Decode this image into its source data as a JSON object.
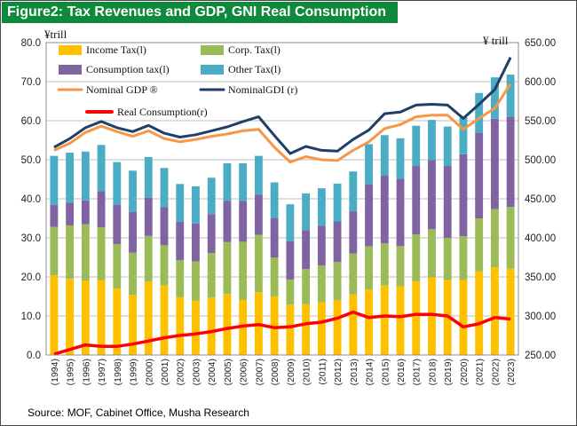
{
  "title": "Figure2: Tax Revenues and GDP, GNI Real Consumption",
  "source": "Source: MOF, Cabinet Office, Musha Research",
  "colors": {
    "title_bg": "#0f8a3c",
    "income_tax": "#ffc000",
    "corp_tax": "#9bbb59",
    "consumption_tax": "#8064a2",
    "other_tax": "#4bacc6",
    "nominal_gdp": "#f79646",
    "nominal_gdi": "#1f3f66",
    "real_consumption": "#ff0000"
  },
  "chart_data": {
    "type": "bar",
    "stacked": true,
    "categories": [
      "1994",
      "1995",
      "1996",
      "1997",
      "1998",
      "1999",
      "2000",
      "2001",
      "2002",
      "2003",
      "2004",
      "2005",
      "2006",
      "2007",
      "2008",
      "2009",
      "2010",
      "2011",
      "2012",
      "2013",
      "2014",
      "2015",
      "2016",
      "2017",
      "2018",
      "2019",
      "2020",
      "2021",
      "2022",
      "2023"
    ],
    "xtick_labels": [
      "(1994)",
      "(1995)",
      "(1996)",
      "(1997)",
      "(1998)",
      "(1999)",
      "(2000)",
      "(2001)",
      "(2002)",
      "(2003)",
      "(2004)",
      "(2005)",
      "(2006)",
      "(2007)",
      "(2008)",
      "(2009)",
      "(2010)",
      "(2011)",
      "(2012)",
      "(2013)",
      "(2014)",
      "(2015)",
      "(2016)",
      "(2017)",
      "(2018)",
      "(2019)",
      "(2020)",
      "(2021)",
      "(2022)",
      "(2023)"
    ],
    "ylabel_left": "¥trill",
    "ylabel_right": "¥ trill",
    "ylim_left": [
      0,
      80
    ],
    "ylim_right": [
      250,
      650
    ],
    "yticks_left": [
      "0.0",
      "10.0",
      "20.0",
      "30.0",
      "40.0",
      "50.0",
      "60.0",
      "70.0",
      "80.0"
    ],
    "yticks_right": [
      "250.00",
      "300.00",
      "350.00",
      "400.00",
      "450.00",
      "500.00",
      "550.00",
      "600.00",
      "650.00"
    ],
    "grid": true,
    "legend_position": "top-left",
    "series": [
      {
        "name": "Income Tax(l)",
        "axis": "left",
        "kind": "bar",
        "values": [
          20.4,
          19.5,
          19.0,
          19.2,
          17.0,
          15.4,
          18.8,
          17.8,
          14.8,
          13.9,
          14.7,
          15.6,
          14.1,
          16.1,
          15.0,
          12.9,
          13.0,
          13.5,
          14.0,
          15.5,
          16.8,
          17.8,
          17.6,
          18.9,
          19.9,
          19.2,
          19.2,
          21.4,
          22.5,
          22.1
        ]
      },
      {
        "name": "Corp. Tax(l)",
        "axis": "left",
        "kind": "bar",
        "values": [
          12.4,
          13.7,
          14.5,
          13.5,
          11.4,
          10.8,
          11.7,
          10.3,
          9.5,
          10.1,
          11.4,
          13.3,
          14.9,
          14.7,
          10.0,
          6.4,
          9.0,
          9.4,
          9.8,
          10.5,
          11.0,
          10.8,
          10.3,
          12.0,
          12.3,
          10.8,
          11.2,
          13.6,
          14.9,
          15.8
        ]
      },
      {
        "name": "Consumption tax(l)",
        "axis": "left",
        "kind": "bar",
        "values": [
          5.6,
          5.8,
          6.1,
          9.3,
          10.1,
          10.4,
          9.8,
          9.8,
          9.8,
          9.7,
          10.0,
          10.6,
          10.5,
          10.3,
          10.0,
          9.8,
          10.0,
          10.2,
          10.4,
          10.8,
          16.0,
          17.4,
          17.2,
          17.5,
          17.7,
          18.4,
          21.0,
          21.9,
          23.1,
          23.1
        ]
      },
      {
        "name": "Other Tax(l)",
        "axis": "left",
        "kind": "bar",
        "values": [
          12.6,
          12.8,
          12.5,
          11.8,
          10.9,
          10.6,
          10.4,
          10.0,
          9.7,
          9.5,
          9.3,
          9.6,
          9.6,
          9.9,
          9.2,
          9.5,
          9.4,
          9.6,
          9.7,
          10.2,
          10.2,
          10.3,
          10.4,
          10.3,
          10.3,
          10.1,
          9.5,
          10.2,
          10.6,
          10.8
        ]
      },
      {
        "name": "Nominal GDP  ®",
        "axis": "right",
        "kind": "line",
        "values": [
          512,
          521,
          535,
          543,
          536,
          530,
          537,
          527,
          523,
          526,
          530,
          533,
          537,
          539,
          516,
          497,
          504,
          500,
          499,
          512,
          523,
          540,
          545,
          555,
          557,
          557,
          539,
          553,
          566,
          597
        ]
      },
      {
        "name": "NominalGDI (r)",
        "axis": "right",
        "kind": "line",
        "values": [
          516,
          527,
          541,
          549,
          541,
          536,
          544,
          534,
          529,
          532,
          537,
          542,
          549,
          555,
          531,
          508,
          517,
          512,
          511,
          526,
          538,
          559,
          561,
          570,
          571,
          570,
          553,
          571,
          590,
          631
        ]
      },
      {
        "name": "Real Consumption(r)",
        "axis": "right",
        "kind": "line",
        "values": [
          251,
          257,
          263,
          261,
          261,
          264,
          268,
          272,
          275,
          277,
          280,
          284,
          287,
          289,
          285,
          286,
          290,
          292,
          297,
          305,
          298,
          300,
          299,
          302,
          302,
          300,
          286,
          290,
          298,
          296
        ]
      }
    ]
  }
}
